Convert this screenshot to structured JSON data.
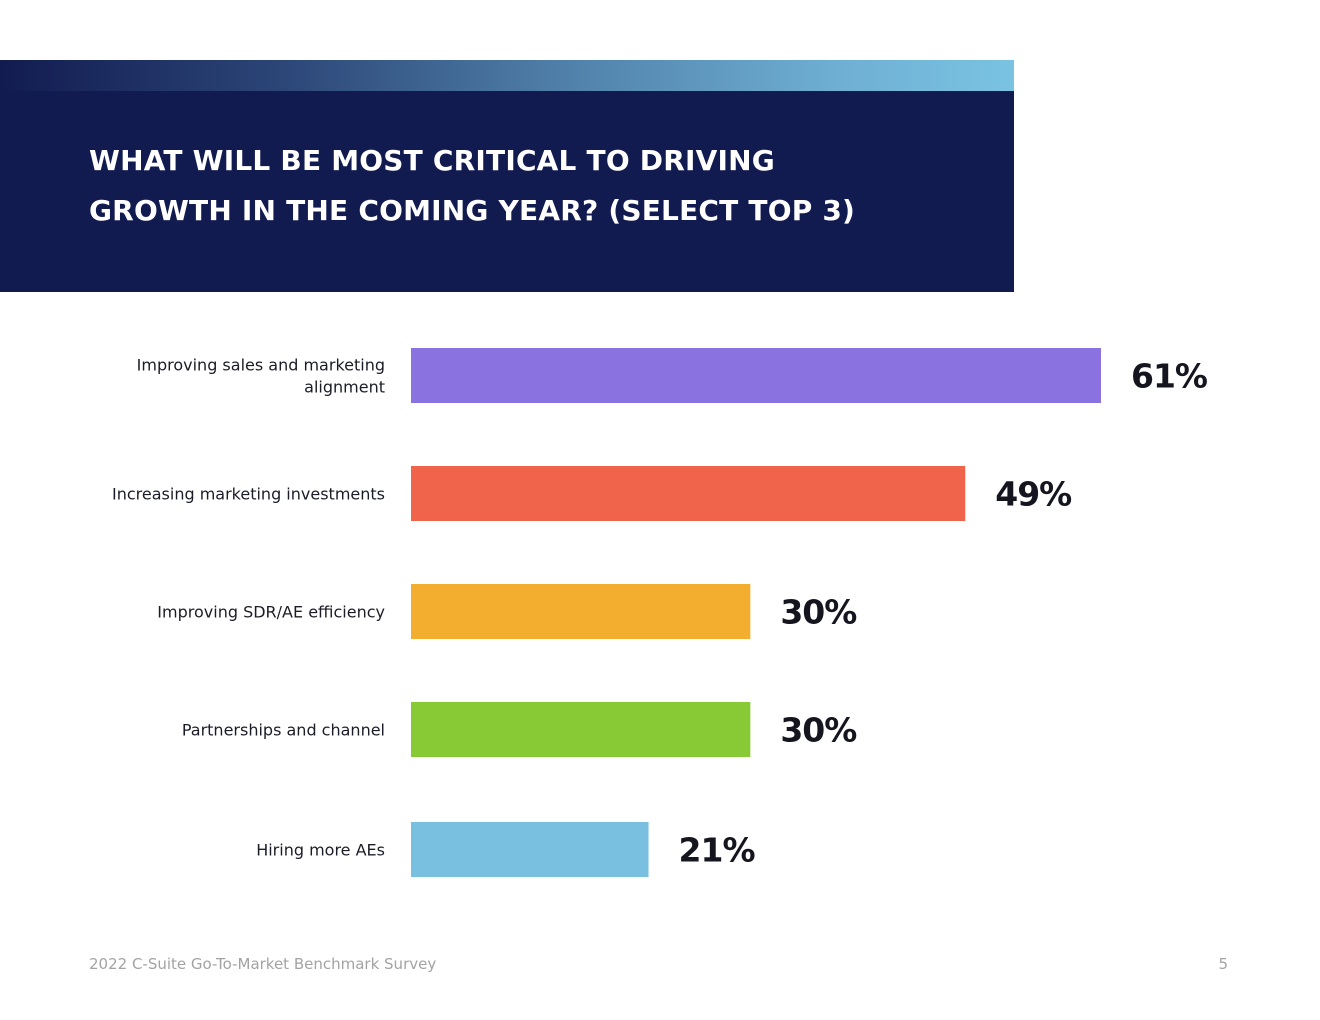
{
  "chart_data": {
    "type": "bar",
    "orientation": "horizontal",
    "title": "What will be most critical to driving growth in the coming year? (Select top 3)",
    "categories": [
      "Improving sales and marketing alignment",
      "Increasing marketing investments",
      "Improving SDR/AE efficiency",
      "Partnerships and channel",
      "Hiring more AEs"
    ],
    "category_lines": [
      [
        "Improving sales and marketing",
        "alignment"
      ],
      [
        "Increasing marketing investments"
      ],
      [
        "Improving SDR/AE efficiency"
      ],
      [
        "Partnerships and channel"
      ],
      [
        "Hiring more AEs"
      ]
    ],
    "values": [
      61,
      49,
      30,
      30,
      21
    ],
    "value_labels": [
      "61%",
      "49%",
      "30%",
      "30%",
      "21%"
    ],
    "colors": [
      "#8a73e0",
      "#ef644a",
      "#f3ae2f",
      "#88ca35",
      "#78bfe0"
    ],
    "unit": "%",
    "xlabel": "",
    "ylabel": "",
    "xlim": [
      0,
      61
    ],
    "grid": false,
    "legend": "none"
  },
  "footer": {
    "source": "2022 C-Suite Go-To-Market Benchmark Survey",
    "page_number": "5"
  },
  "colors": {
    "title_panel": "#121b50",
    "gradient_end": "#7ac3e2",
    "footer_text": "#a3a3a3"
  }
}
